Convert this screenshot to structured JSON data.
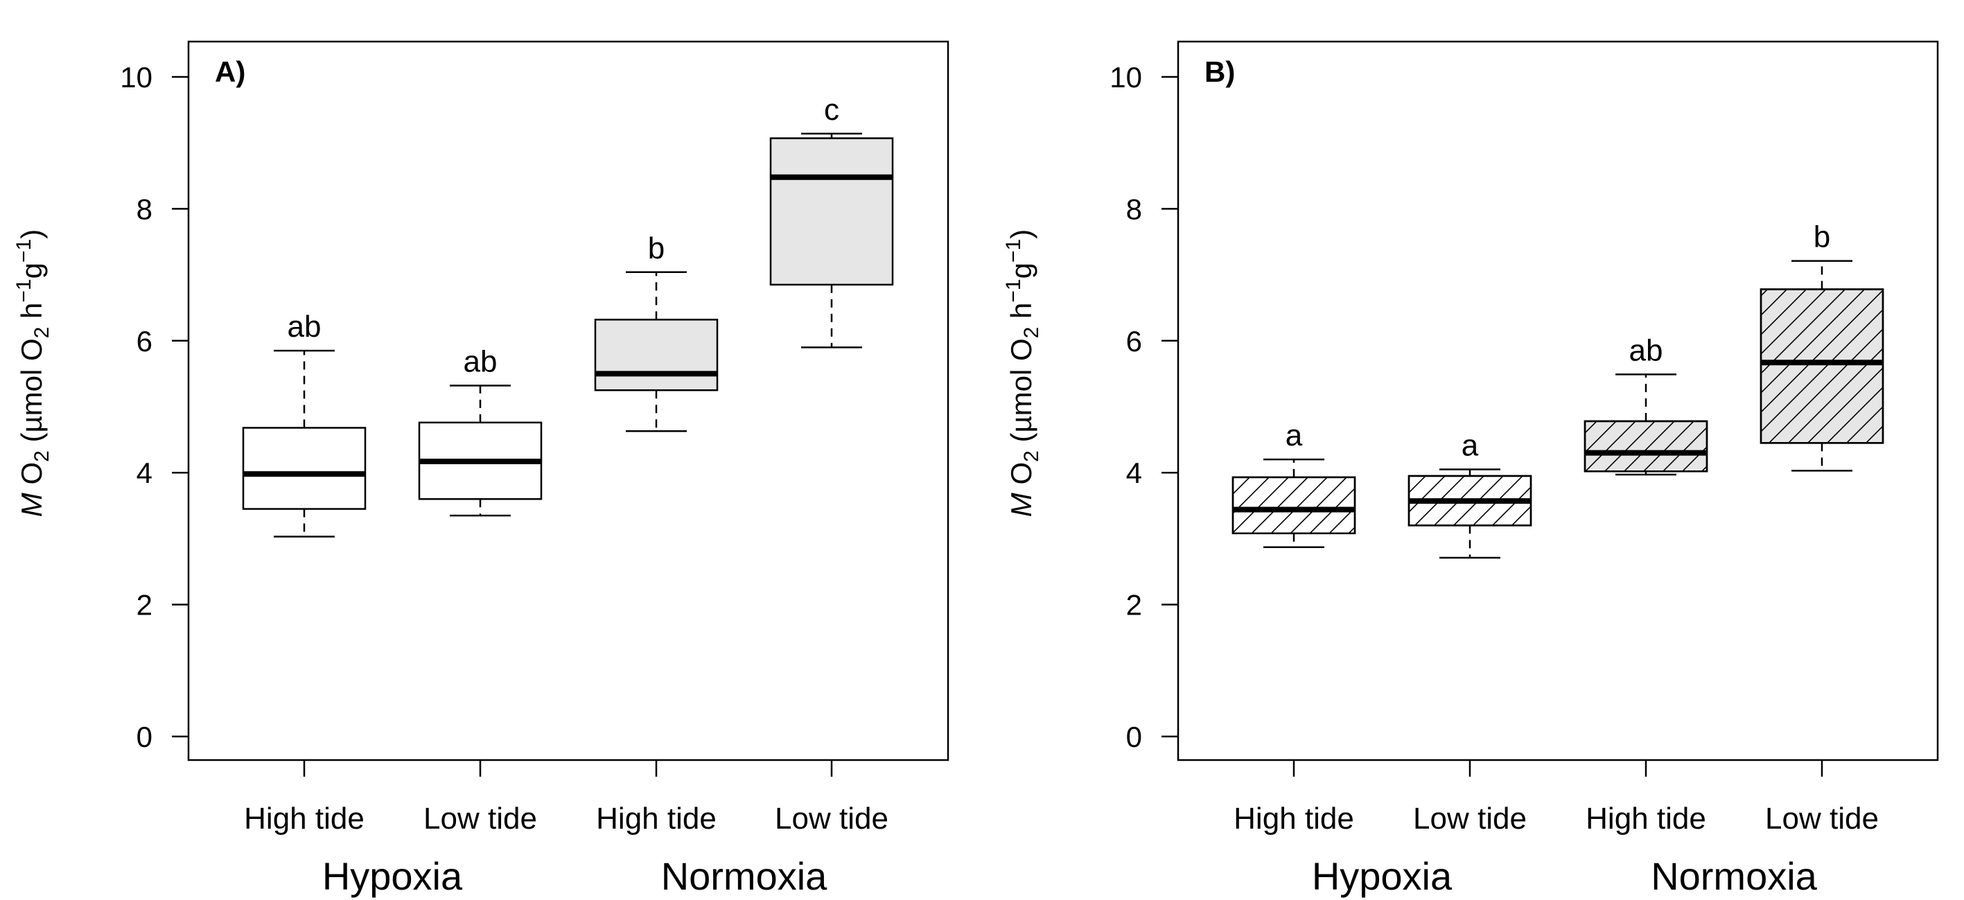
{
  "chart_data": [
    {
      "type": "box",
      "panel_label": "A)",
      "ylabel": {
        "italic": "M",
        "main": "O",
        "sub": "2",
        "units": "(µmol O",
        "units_sub": "2",
        "h": " h",
        "h_exp": "−1",
        "g": "g",
        "g_exp": "−1",
        "close": ")"
      },
      "ylim": [
        0,
        10.4
      ],
      "yticks": [
        "0",
        "2",
        "4",
        "6",
        "8",
        "10"
      ],
      "ytick_values": [
        0,
        2,
        4,
        6,
        8,
        10
      ],
      "categories": [
        "High tide",
        "Low tide",
        "High tide",
        "Low tide"
      ],
      "groups": [
        {
          "label": "Hypoxia",
          "span": [
            0,
            1
          ]
        },
        {
          "label": "Normoxia",
          "span": [
            2,
            3
          ]
        }
      ],
      "boxes": [
        {
          "min": 3.03,
          "q1": 3.45,
          "median": 3.98,
          "q3": 4.68,
          "max": 5.85,
          "letter": "ab",
          "fill": "#ffffff",
          "hatch": false
        },
        {
          "min": 3.35,
          "q1": 3.6,
          "median": 4.17,
          "q3": 4.76,
          "max": 5.32,
          "letter": "ab",
          "fill": "#ffffff",
          "hatch": false
        },
        {
          "min": 4.63,
          "q1": 5.25,
          "median": 5.5,
          "q3": 6.32,
          "max": 7.04,
          "letter": "b",
          "fill": "#e6e6e6",
          "hatch": false
        },
        {
          "min": 5.9,
          "q1": 6.85,
          "median": 8.48,
          "q3": 9.07,
          "max": 9.14,
          "letter": "c",
          "fill": "#e6e6e6",
          "hatch": false
        }
      ]
    },
    {
      "type": "box",
      "panel_label": "B)",
      "ylabel": {
        "italic": "M",
        "main": "O",
        "sub": "2",
        "units": "(µmol O",
        "units_sub": "2",
        "h": " h",
        "h_exp": "−1",
        "g": "g",
        "g_exp": "−1",
        "close": ")"
      },
      "ylim": [
        0,
        10.4
      ],
      "yticks": [
        "0",
        "2",
        "4",
        "6",
        "8",
        "10"
      ],
      "ytick_values": [
        0,
        2,
        4,
        6,
        8,
        10
      ],
      "categories": [
        "High tide",
        "Low tide",
        "High tide",
        "Low tide"
      ],
      "groups": [
        {
          "label": "Hypoxia",
          "span": [
            0,
            1
          ]
        },
        {
          "label": "Normoxia",
          "span": [
            2,
            3
          ]
        }
      ],
      "boxes": [
        {
          "min": 2.87,
          "q1": 3.08,
          "median": 3.44,
          "q3": 3.93,
          "max": 4.2,
          "letter": "a",
          "fill": "#ffffff",
          "hatch": true
        },
        {
          "min": 2.71,
          "q1": 3.2,
          "median": 3.57,
          "q3": 3.95,
          "max": 4.05,
          "letter": "a",
          "fill": "#ffffff",
          "hatch": true
        },
        {
          "min": 3.97,
          "q1": 4.02,
          "median": 4.3,
          "q3": 4.78,
          "max": 5.49,
          "letter": "ab",
          "fill": "#e6e6e6",
          "hatch": true
        },
        {
          "min": 4.03,
          "q1": 4.45,
          "median": 5.67,
          "q3": 6.78,
          "max": 7.21,
          "letter": "b",
          "fill": "#e6e6e6",
          "hatch": true
        }
      ]
    }
  ]
}
